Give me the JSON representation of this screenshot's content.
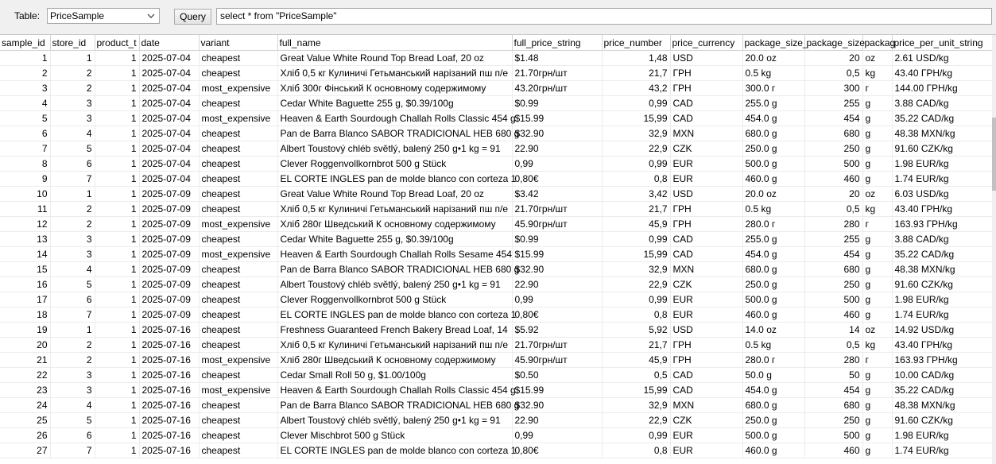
{
  "toolbar": {
    "table_label": "Table:",
    "table_select": "PriceSample",
    "query_button": "Query",
    "query_text": "select * from \"PriceSample\""
  },
  "columns": [
    "sample_id",
    "store_id",
    "product_t",
    "date",
    "variant",
    "full_name",
    "full_price_string",
    "price_number",
    "price_currency",
    "package_size_",
    "package_size",
    "packag",
    "price_per_unit_string"
  ],
  "rows": [
    [
      "1",
      "1",
      "1",
      "2025-07-04",
      "cheapest",
      "Great Value White Round Top Bread Loaf, 20 oz",
      "$1.48",
      "1,48",
      "USD",
      "20.0 oz",
      "20",
      "oz",
      "2.61 USD/kg"
    ],
    [
      "2",
      "2",
      "1",
      "2025-07-04",
      "cheapest",
      "Хліб 0,5 кг Кулиничі Гетьманський нарізаний пш п/е",
      "21.70грн/шт",
      "21,7",
      "ГРН",
      "0.5 kg",
      "0,5",
      "kg",
      "43.40 ГРН/kg"
    ],
    [
      "3",
      "2",
      "1",
      "2025-07-04",
      "most_expensive",
      "Хліб 300г Фінський К основному содержимому",
      "43.20грн/шт",
      "43,2",
      "ГРН",
      "300.0 г",
      "300",
      "г",
      "144.00 ГРН/kg"
    ],
    [
      "4",
      "3",
      "1",
      "2025-07-04",
      "cheapest",
      "Cedar White Baguette 255 g, $0.39/100g",
      "$0.99",
      "0,99",
      "CAD",
      "255.0 g",
      "255",
      "g",
      "3.88 CAD/kg"
    ],
    [
      "5",
      "3",
      "1",
      "2025-07-04",
      "most_expensive",
      "Heaven &amp; Earth Sourdough Challah Rolls Classic 454 g",
      "$15.99",
      "15,99",
      "CAD",
      "454.0 g",
      "454",
      "g",
      "35.22 CAD/kg"
    ],
    [
      "6",
      "4",
      "1",
      "2025-07-04",
      "cheapest",
      "Pan de Barra Blanco SABOR TRADICIONAL HEB 680 g",
      "$32.90",
      "32,9",
      "MXN",
      "680.0 g",
      "680",
      "g",
      "48.38 MXN/kg"
    ],
    [
      "7",
      "5",
      "1",
      "2025-07-04",
      "cheapest",
      "Albert Toustový chléb světlý, balený 250 g•1 kg = 91",
      "22.90",
      "22,9",
      "CZK",
      "250.0 g",
      "250",
      "g",
      "91.60 CZK/kg"
    ],
    [
      "8",
      "6",
      "1",
      "2025-07-04",
      "cheapest",
      "Clever Roggenvollkornbrot 500 g Stück",
      "0,99",
      "0,99",
      "EUR",
      "500.0 g",
      "500",
      "g",
      "1.98 EUR/kg"
    ],
    [
      "9",
      "7",
      "1",
      "2025-07-04",
      "cheapest",
      "EL CORTE INGLES pan de molde blanco con corteza 1",
      "0,80€",
      "0,8",
      "EUR",
      "460.0 g",
      "460",
      "g",
      "1.74 EUR/kg"
    ],
    [
      "10",
      "1",
      "1",
      "2025-07-09",
      "cheapest",
      "Great Value White Round Top Bread Loaf, 20 oz",
      "$3.42",
      "3,42",
      "USD",
      "20.0 oz",
      "20",
      "oz",
      "6.03 USD/kg"
    ],
    [
      "11",
      "2",
      "1",
      "2025-07-09",
      "cheapest",
      "Хліб 0,5 кг Кулиничі Гетьманський нарізаний пш п/е",
      "21.70грн/шт",
      "21,7",
      "ГРН",
      "0.5 kg",
      "0,5",
      "kg",
      "43.40 ГРН/kg"
    ],
    [
      "12",
      "2",
      "1",
      "2025-07-09",
      "most_expensive",
      "Хліб 280г Шведський К основному содержимому",
      "45.90грн/шт",
      "45,9",
      "ГРН",
      "280.0 г",
      "280",
      "г",
      "163.93 ГРН/kg"
    ],
    [
      "13",
      "3",
      "1",
      "2025-07-09",
      "cheapest",
      "Cedar White Baguette 255 g, $0.39/100g",
      "$0.99",
      "0,99",
      "CAD",
      "255.0 g",
      "255",
      "g",
      "3.88 CAD/kg"
    ],
    [
      "14",
      "3",
      "1",
      "2025-07-09",
      "most_expensive",
      "Heaven &amp; Earth Sourdough Challah Rolls Sesame 454",
      "$15.99",
      "15,99",
      "CAD",
      "454.0 g",
      "454",
      "g",
      "35.22 CAD/kg"
    ],
    [
      "15",
      "4",
      "1",
      "2025-07-09",
      "cheapest",
      "Pan de Barra Blanco SABOR TRADICIONAL HEB 680 g",
      "$32.90",
      "32,9",
      "MXN",
      "680.0 g",
      "680",
      "g",
      "48.38 MXN/kg"
    ],
    [
      "16",
      "5",
      "1",
      "2025-07-09",
      "cheapest",
      "Albert Toustový chléb světlý, balený 250 g•1 kg = 91",
      "22.90",
      "22,9",
      "CZK",
      "250.0 g",
      "250",
      "g",
      "91.60 CZK/kg"
    ],
    [
      "17",
      "6",
      "1",
      "2025-07-09",
      "cheapest",
      "Clever Roggenvollkornbrot 500 g Stück",
      "0,99",
      "0,99",
      "EUR",
      "500.0 g",
      "500",
      "g",
      "1.98 EUR/kg"
    ],
    [
      "18",
      "7",
      "1",
      "2025-07-09",
      "cheapest",
      "EL CORTE INGLES pan de molde blanco con corteza 1",
      "0,80€",
      "0,8",
      "EUR",
      "460.0 g",
      "460",
      "g",
      "1.74 EUR/kg"
    ],
    [
      "19",
      "1",
      "1",
      "2025-07-16",
      "cheapest",
      "Freshness Guaranteed French Bakery Bread Loaf, 14",
      "$5.92",
      "5,92",
      "USD",
      "14.0 oz",
      "14",
      "oz",
      "14.92 USD/kg"
    ],
    [
      "20",
      "2",
      "1",
      "2025-07-16",
      "cheapest",
      "Хліб 0,5 кг Кулиничі Гетьманський нарізаний пш п/е",
      "21.70грн/шт",
      "21,7",
      "ГРН",
      "0.5 kg",
      "0,5",
      "kg",
      "43.40 ГРН/kg"
    ],
    [
      "21",
      "2",
      "1",
      "2025-07-16",
      "most_expensive",
      "Хліб 280г Шведський К основному содержимому",
      "45.90грн/шт",
      "45,9",
      "ГРН",
      "280.0 г",
      "280",
      "г",
      "163.93 ГРН/kg"
    ],
    [
      "22",
      "3",
      "1",
      "2025-07-16",
      "cheapest",
      "Cedar Small Roll 50 g, $1.00/100g",
      "$0.50",
      "0,5",
      "CAD",
      "50.0 g",
      "50",
      "g",
      "10.00 CAD/kg"
    ],
    [
      "23",
      "3",
      "1",
      "2025-07-16",
      "most_expensive",
      "Heaven &amp; Earth Sourdough Challah Rolls Classic 454 g",
      "$15.99",
      "15,99",
      "CAD",
      "454.0 g",
      "454",
      "g",
      "35.22 CAD/kg"
    ],
    [
      "24",
      "4",
      "1",
      "2025-07-16",
      "cheapest",
      "Pan de Barra Blanco SABOR TRADICIONAL HEB 680 g",
      "$32.90",
      "32,9",
      "MXN",
      "680.0 g",
      "680",
      "g",
      "48.38 MXN/kg"
    ],
    [
      "25",
      "5",
      "1",
      "2025-07-16",
      "cheapest",
      "Albert Toustový chléb světlý, balený 250 g•1 kg = 91",
      "22.90",
      "22,9",
      "CZK",
      "250.0 g",
      "250",
      "g",
      "91.60 CZK/kg"
    ],
    [
      "26",
      "6",
      "1",
      "2025-07-16",
      "cheapest",
      "Clever Mischbrot 500 g Stück",
      "0,99",
      "0,99",
      "EUR",
      "500.0 g",
      "500",
      "g",
      "1.98 EUR/kg"
    ],
    [
      "27",
      "7",
      "1",
      "2025-07-16",
      "cheapest",
      "EL CORTE INGLES pan de molde blanco con corteza 1",
      "0,80€",
      "0,8",
      "EUR",
      "460.0 g",
      "460",
      "g",
      "1.74 EUR/kg"
    ]
  ]
}
